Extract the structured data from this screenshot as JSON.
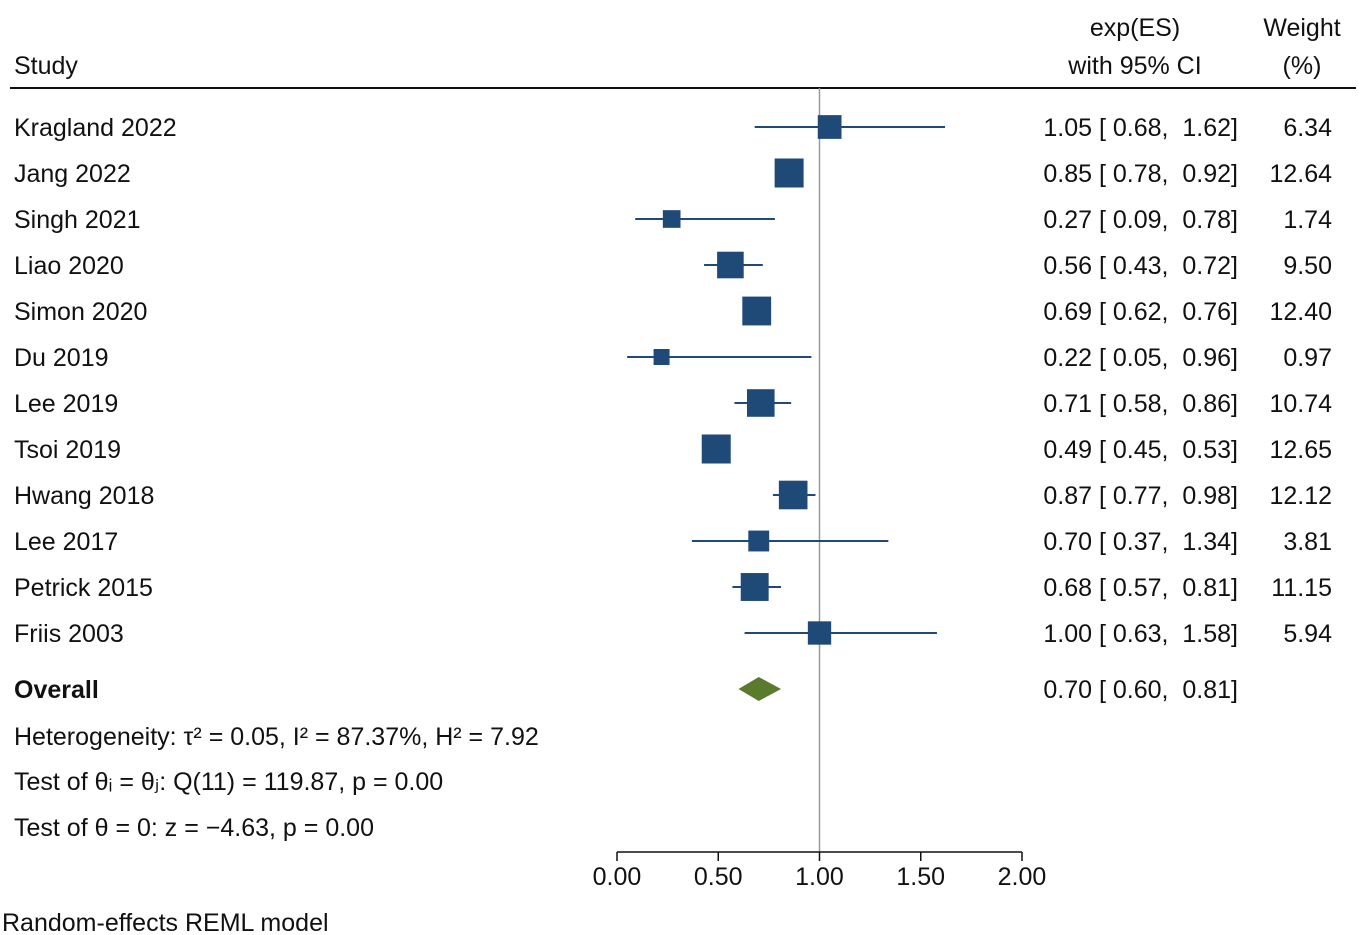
{
  "chart_data": {
    "type": "forest",
    "header": {
      "study": "Study",
      "es_line1": "exp(ES)",
      "es_line2": "with 95% CI",
      "weight_line1": "Weight",
      "weight_line2": "(%)"
    },
    "studies": [
      {
        "name": "Kragland 2022",
        "es": 1.05,
        "lo": 0.68,
        "hi": 1.62,
        "weight": 6.34,
        "ci_text": "1.05 [ 0.68,  1.62]",
        "weight_text": "6.34"
      },
      {
        "name": "Jang 2022",
        "es": 0.85,
        "lo": 0.78,
        "hi": 0.92,
        "weight": 12.64,
        "ci_text": "0.85 [ 0.78,  0.92]",
        "weight_text": "12.64"
      },
      {
        "name": "Singh 2021",
        "es": 0.27,
        "lo": 0.09,
        "hi": 0.78,
        "weight": 1.74,
        "ci_text": "0.27 [ 0.09,  0.78]",
        "weight_text": "1.74"
      },
      {
        "name": "Liao 2020",
        "es": 0.56,
        "lo": 0.43,
        "hi": 0.72,
        "weight": 9.5,
        "ci_text": "0.56 [ 0.43,  0.72]",
        "weight_text": "9.50"
      },
      {
        "name": "Simon 2020",
        "es": 0.69,
        "lo": 0.62,
        "hi": 0.76,
        "weight": 12.4,
        "ci_text": "0.69 [ 0.62,  0.76]",
        "weight_text": "12.40"
      },
      {
        "name": "Du 2019",
        "es": 0.22,
        "lo": 0.05,
        "hi": 0.96,
        "weight": 0.97,
        "ci_text": "0.22 [ 0.05,  0.96]",
        "weight_text": "0.97"
      },
      {
        "name": "Lee 2019",
        "es": 0.71,
        "lo": 0.58,
        "hi": 0.86,
        "weight": 10.74,
        "ci_text": "0.71 [ 0.58,  0.86]",
        "weight_text": "10.74"
      },
      {
        "name": "Tsoi 2019",
        "es": 0.49,
        "lo": 0.45,
        "hi": 0.53,
        "weight": 12.65,
        "ci_text": "0.49 [ 0.45,  0.53]",
        "weight_text": "12.65"
      },
      {
        "name": "Hwang 2018",
        "es": 0.87,
        "lo": 0.77,
        "hi": 0.98,
        "weight": 12.12,
        "ci_text": "0.87 [ 0.77,  0.98]",
        "weight_text": "12.12"
      },
      {
        "name": "Lee 2017",
        "es": 0.7,
        "lo": 0.37,
        "hi": 1.34,
        "weight": 3.81,
        "ci_text": "0.70 [ 0.37,  1.34]",
        "weight_text": "3.81"
      },
      {
        "name": "Petrick 2015",
        "es": 0.68,
        "lo": 0.57,
        "hi": 0.81,
        "weight": 11.15,
        "ci_text": "0.68 [ 0.57,  0.81]",
        "weight_text": "11.15"
      },
      {
        "name": "Friis 2003",
        "es": 1.0,
        "lo": 0.63,
        "hi": 1.58,
        "weight": 5.94,
        "ci_text": "1.00 [ 0.63,  1.58]",
        "weight_text": "5.94"
      }
    ],
    "overall": {
      "name": "Overall",
      "es": 0.7,
      "lo": 0.6,
      "hi": 0.81,
      "ci_text": "0.70 [ 0.60,  0.81]"
    },
    "stats": {
      "heterogeneity": "Heterogeneity: τ² = 0.05, I² = 87.37%, H² = 7.92",
      "test_q": "Test of θᵢ = θⱼ: Q(11) = 119.87, p = 0.00",
      "test_z": "Test of θ = 0: z = −4.63, p = 0.00"
    },
    "x_ticks": [
      "0.00",
      "0.50",
      "1.00",
      "1.50",
      "2.00"
    ],
    "xlim": [
      0,
      2
    ],
    "reference_line": 1,
    "footnote": "Random-effects REML model",
    "colors": {
      "marker": "#1f4a78",
      "overall": "#5a7a2e",
      "refline": "#9a9a9a",
      "text": "#111111"
    }
  }
}
